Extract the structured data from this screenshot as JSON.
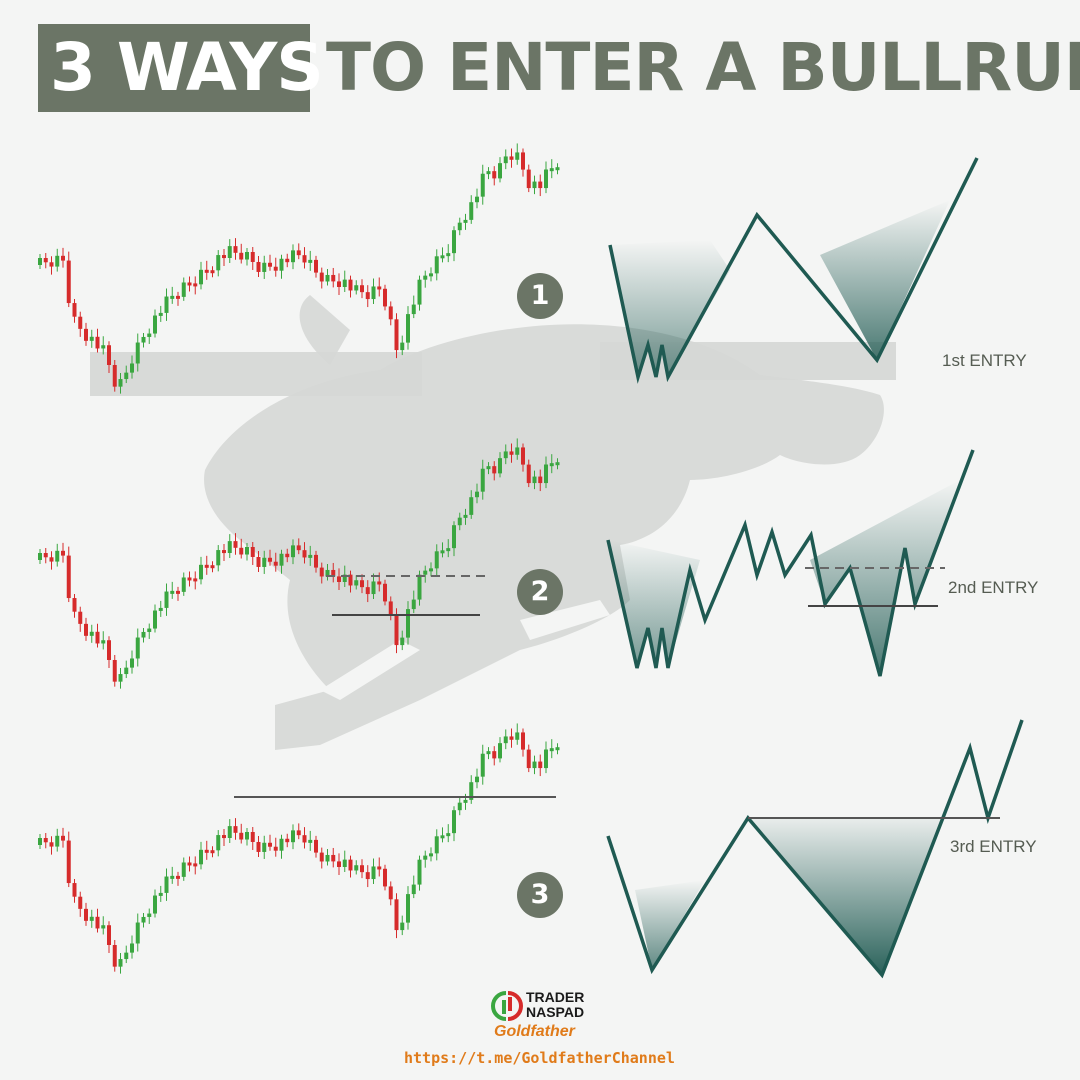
{
  "title": {
    "highlight": "3 WAYS",
    "rest": "TO ENTER A BULLRUN"
  },
  "steps": [
    {
      "number": "1",
      "entry_label": "1st ENTRY"
    },
    {
      "number": "2",
      "entry_label": "2nd ENTRY"
    },
    {
      "number": "3",
      "entry_label": "3rd ENTRY"
    }
  ],
  "branding": {
    "name_line1": "TRADER",
    "name_line2": "NASPAD",
    "subtitle": "Goldfather",
    "url": "https://t.me/GoldfatherChannel"
  },
  "colors": {
    "title_bg": "#6b7566",
    "bull_candle": "#3aa640",
    "bear_candle": "#d62b2b",
    "pattern_line": "#1f5a52",
    "accent_orange": "#e07b1a",
    "zone_gray": "#d5d7d5"
  },
  "watermark_icon": "bull-icon"
}
